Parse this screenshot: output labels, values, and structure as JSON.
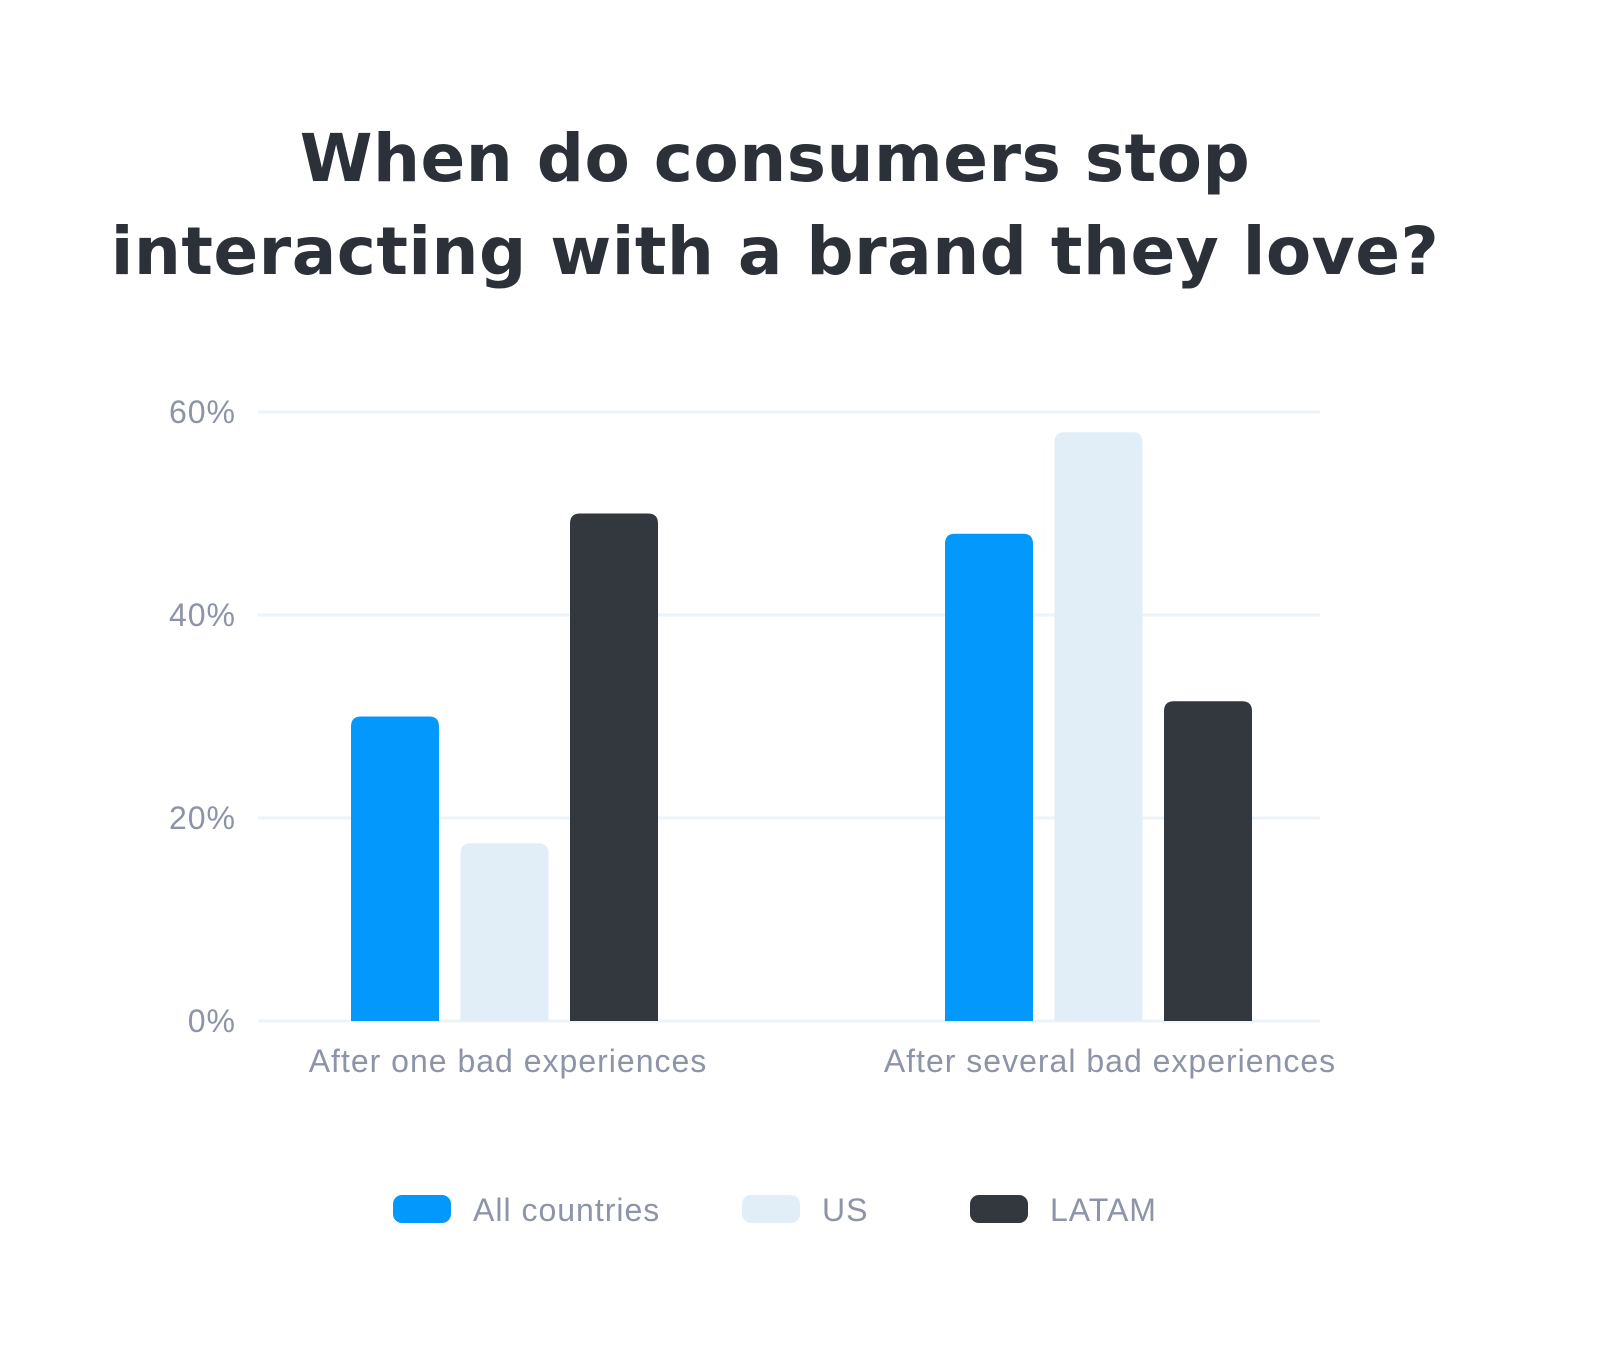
{
  "chart_data": {
    "type": "bar",
    "title_lines": [
      "When do consumers stop",
      "interacting with a brand they love?"
    ],
    "categories": [
      "After one bad experiences",
      "After several bad experiences"
    ],
    "series": [
      {
        "name": "All countries",
        "color": "#0398fc",
        "values": [
          30,
          48
        ]
      },
      {
        "name": "US",
        "color": "#e2eef7",
        "values": [
          17.5,
          58
        ]
      },
      {
        "name": "LATAM",
        "color": "#33373e",
        "values": [
          50,
          31.5
        ]
      }
    ],
    "y_ticks": [
      "0%",
      "20%",
      "40%",
      "60%"
    ],
    "y_tick_values": [
      0,
      20,
      40,
      60
    ],
    "ylim": [
      0,
      60
    ],
    "grid": true,
    "legend_position": "bottom",
    "colors": {
      "grid": "#eef3f8",
      "text_muted": "#8d94a8",
      "title": "#2c3038"
    }
  }
}
